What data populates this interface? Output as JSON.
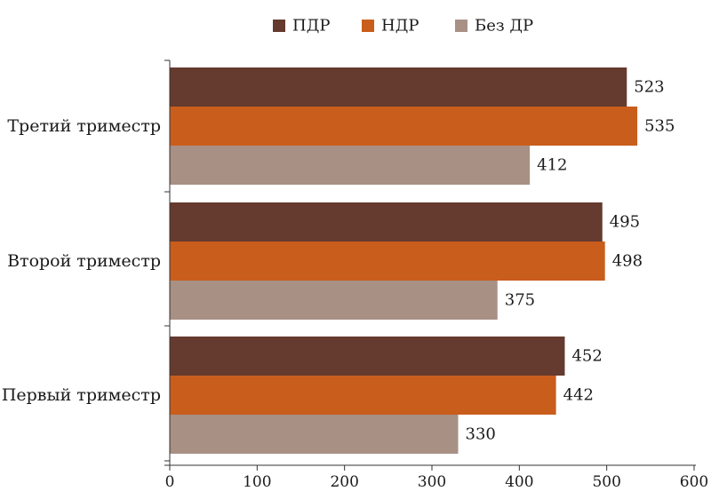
{
  "chart_data": {
    "type": "bar",
    "orientation": "horizontal",
    "categories": [
      "Третий триместр",
      "Второй триместр",
      "Первый триместр"
    ],
    "series": [
      {
        "name": "ПДР",
        "color": "#653A2F",
        "values": [
          523,
          495,
          452
        ]
      },
      {
        "name": "НДР",
        "color": "#C95D1C",
        "values": [
          535,
          498,
          442
        ]
      },
      {
        "name": "Без ДР",
        "color": "#A89085",
        "values": [
          412,
          375,
          330
        ]
      }
    ],
    "x_ticks": [
      "0",
      "100",
      "200",
      "300",
      "400",
      "500",
      "600"
    ],
    "xlim": [
      0,
      600
    ],
    "grid": false,
    "legend_position": "top-center",
    "title": "",
    "xlabel": "",
    "ylabel": ""
  }
}
